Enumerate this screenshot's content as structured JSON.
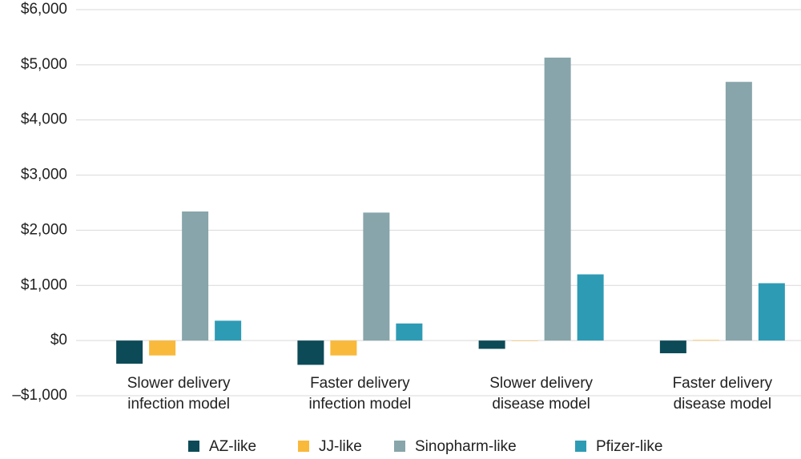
{
  "chart_data": {
    "type": "bar",
    "categories": [
      [
        "Slower delivery",
        "infection model"
      ],
      [
        "Faster delivery",
        "infection model"
      ],
      [
        "Slower delivery",
        "disease model"
      ],
      [
        "Faster delivery",
        "disease model"
      ]
    ],
    "series": [
      {
        "name": "AZ-like",
        "color": "#0d4a57",
        "values": [
          -420,
          -440,
          -150,
          -230
        ]
      },
      {
        "name": "JJ-like",
        "color": "#f9b93b",
        "values": [
          -270,
          -270,
          0,
          10
        ]
      },
      {
        "name": "Sinopharm-like",
        "color": "#87a5aa",
        "values": [
          2340,
          2320,
          5130,
          4690
        ]
      },
      {
        "name": "Pfizer-like",
        "color": "#2e9bb5",
        "values": [
          360,
          310,
          1200,
          1040
        ]
      }
    ],
    "ylim": [
      -1000,
      6000
    ],
    "yticks": [
      {
        "value": -1000,
        "label": "–$1,000"
      },
      {
        "value": 0,
        "label": "$0"
      },
      {
        "value": 1000,
        "label": "$1,000"
      },
      {
        "value": 2000,
        "label": "$2,000"
      },
      {
        "value": 3000,
        "label": "$3,000"
      },
      {
        "value": 4000,
        "label": "$4,000"
      },
      {
        "value": 5000,
        "label": "$5,000"
      },
      {
        "value": 6000,
        "label": "$6,000"
      }
    ],
    "grid": true,
    "legend": "bottom"
  }
}
